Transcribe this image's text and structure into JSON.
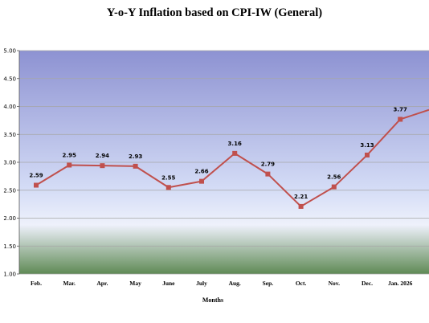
{
  "chart_data": {
    "type": "line",
    "title": "Y-o-Y Inflation based on CPI-IW (General)",
    "xlabel": "Months",
    "ylabel": "",
    "categories": [
      "Feb.",
      "Mar.",
      "Apr.",
      "May",
      "June",
      "July",
      "Aug.",
      "Sep.",
      "Oct.",
      "Nov.",
      "Dec.",
      "Jan. 2026"
    ],
    "series": [
      {
        "values": [
          2.59,
          2.95,
          2.94,
          2.93,
          2.55,
          2.66,
          3.16,
          2.79,
          2.21,
          2.56,
          3.13,
          3.77
        ],
        "labels": [
          "2.59",
          "2.95",
          "2.94",
          "2.93",
          "2.55",
          "2.66",
          "3.16",
          "2.79",
          "2.21",
          "2.56",
          "3.13",
          "3.77"
        ]
      }
    ],
    "yticks": [
      "1.00",
      "1.50",
      "2.00",
      "2.50",
      "3.00",
      "3.50",
      "4.00",
      "4.50",
      "5.00"
    ],
    "ylim": [
      1.0,
      5.0
    ],
    "grid": true,
    "legend": "none",
    "colors": {
      "line": "#c0504d",
      "gridline": "#a6a6a6",
      "bg_top": "#8d92d2",
      "bg_mid": "#d4dcf6",
      "bg_bottom": "#5f8a55"
    }
  }
}
